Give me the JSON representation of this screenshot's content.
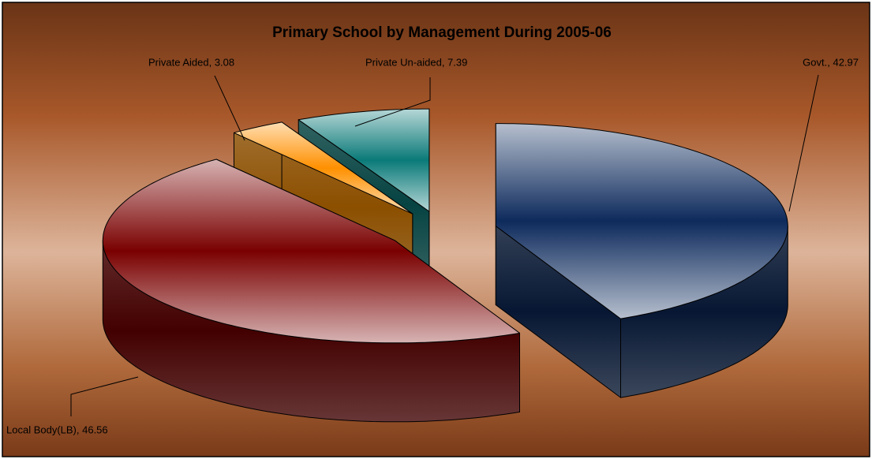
{
  "chart_data": {
    "type": "pie3d",
    "title": "Primary School by Management During 2005-06",
    "categories": [
      "Govt.",
      "Local Body(LB)",
      "Private Aided",
      "Private Un-aided"
    ],
    "values": [
      42.97,
      46.56,
      3.08,
      7.39
    ],
    "value_labels": [
      "Govt., 42.97",
      "Local Body(LB), 46.56",
      "Private Aided, 3.08",
      "Private Un-aided, 7.39"
    ],
    "colors": [
      "#0d2a5c",
      "#7a0000",
      "#ff9000",
      "#0a7a78"
    ]
  }
}
